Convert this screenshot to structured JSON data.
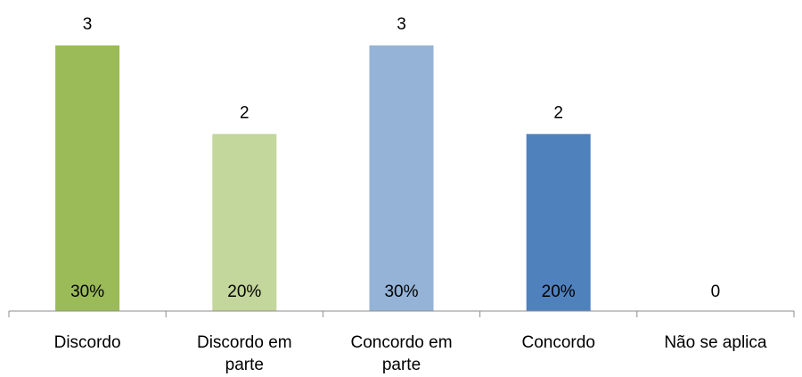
{
  "chart_data": {
    "type": "bar",
    "categories": [
      "Discordo",
      "Discordo em parte",
      "Concordo em parte",
      "Concordo",
      "Não se aplica"
    ],
    "category_lines": [
      [
        "Discordo"
      ],
      [
        "Discordo em",
        "parte"
      ],
      [
        "Concordo em",
        "parte"
      ],
      [
        "Concordo"
      ],
      [
        "Não se aplica"
      ]
    ],
    "values": [
      3,
      2,
      3,
      2,
      0
    ],
    "percent_labels": [
      "30%",
      "20%",
      "30%",
      "20%",
      ""
    ],
    "colors": [
      "#9bbb59",
      "#c3d69b",
      "#95b3d7",
      "#4f81bd",
      "#4f81bd"
    ],
    "ylim": [
      0,
      3
    ],
    "grid": false,
    "legend": "none",
    "title": "",
    "xlabel": "",
    "ylabel": ""
  }
}
